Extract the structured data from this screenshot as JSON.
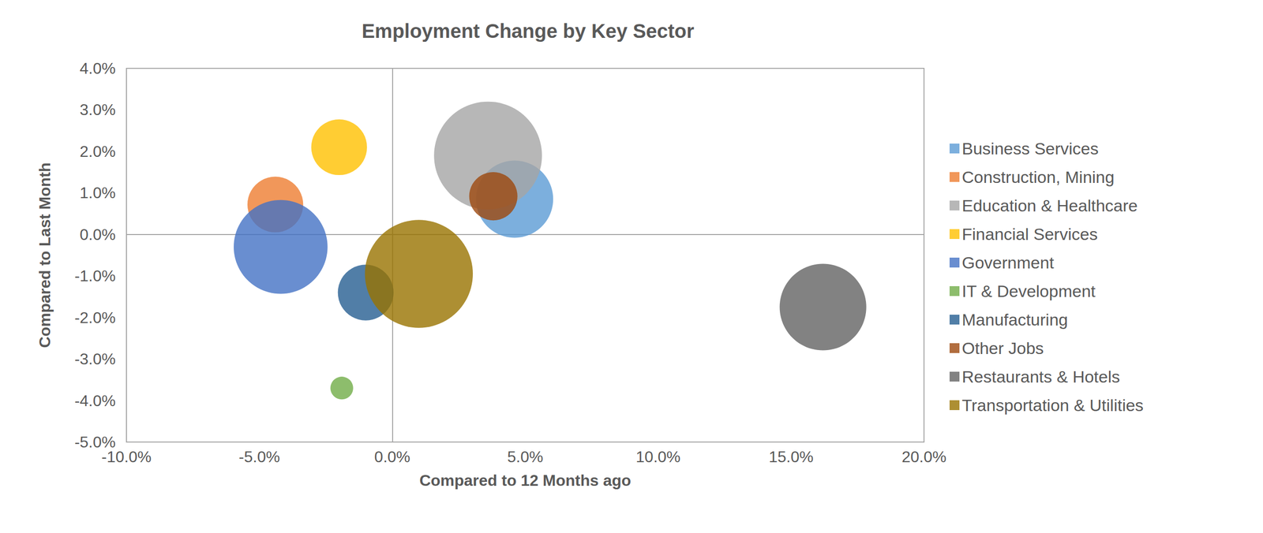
{
  "chart_data": {
    "type": "scatter",
    "title": "Employment Change by Key Sector",
    "x_label": "Compared to 12 Months ago",
    "y_label": "Compared to Last Month",
    "xlim": [
      -10,
      20
    ],
    "xticks": [
      {
        "value": -10,
        "label": "-10.0%"
      },
      {
        "value": -5,
        "label": "-5.0%"
      },
      {
        "value": 0,
        "label": "0.0%"
      },
      {
        "value": 5,
        "label": "5.0%"
      },
      {
        "value": 10,
        "label": "10.0%"
      },
      {
        "value": 15,
        "label": "15.0%"
      },
      {
        "value": 20,
        "label": "20.0%"
      }
    ],
    "ylim": [
      -5,
      4
    ],
    "yticks": [
      {
        "value": -5,
        "label": "-5.0%"
      },
      {
        "value": -4,
        "label": "-4.0%"
      },
      {
        "value": -3,
        "label": "-3.0%"
      },
      {
        "value": -2,
        "label": "-2.0%"
      },
      {
        "value": -1,
        "label": "-1.0%"
      },
      {
        "value": 0,
        "label": "0.0%"
      },
      {
        "value": 1,
        "label": "1.0%"
      },
      {
        "value": 2,
        "label": "2.0%"
      },
      {
        "value": 3,
        "label": "3.0%"
      },
      {
        "value": 4,
        "label": "4.0%"
      }
    ],
    "grid": false,
    "legend": "right",
    "marker": "circle",
    "series": [
      {
        "name": "Business Services",
        "color": "#5b9bd5",
        "x": [
          4.6
        ],
        "values": [
          0.85
        ],
        "size": [
          2300
        ]
      },
      {
        "name": "Construction, Mining",
        "color": "#ed7d31",
        "x": [
          -4.4
        ],
        "values": [
          0.72
        ],
        "size": [
          1200
        ]
      },
      {
        "name": "Education & Healthcare",
        "color": "#a5a5a5",
        "x": [
          3.6
        ],
        "values": [
          1.9
        ],
        "size": [
          4500
        ]
      },
      {
        "name": "Financial Services",
        "color": "#ffc000",
        "x": [
          -2.0
        ],
        "values": [
          2.1
        ],
        "size": [
          1200
        ]
      },
      {
        "name": "Government",
        "color": "#4472c4",
        "x": [
          -4.2
        ],
        "values": [
          -0.3
        ],
        "size": [
          3400
        ]
      },
      {
        "name": "IT & Development",
        "color": "#70ad47",
        "x": [
          -1.9
        ],
        "values": [
          -3.7
        ],
        "size": [
          200
        ]
      },
      {
        "name": "Manufacturing",
        "color": "#255e91",
        "x": [
          -1.0
        ],
        "values": [
          -1.4
        ],
        "size": [
          1200
        ]
      },
      {
        "name": "Other Jobs",
        "color": "#9e480e",
        "x": [
          3.8
        ],
        "values": [
          0.92
        ],
        "size": [
          900
        ]
      },
      {
        "name": "Restaurants & Hotels",
        "color": "#636363",
        "x": [
          16.2
        ],
        "values": [
          -1.75
        ],
        "size": [
          2900
        ]
      },
      {
        "name": "Transportation & Utilities",
        "color": "#997300",
        "x": [
          1.0
        ],
        "values": [
          -0.95
        ],
        "size": [
          4500
        ]
      }
    ]
  }
}
